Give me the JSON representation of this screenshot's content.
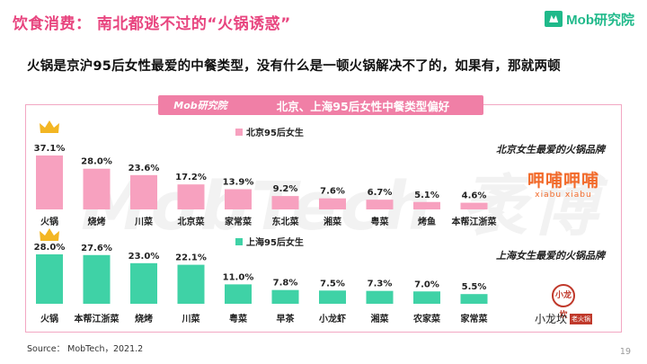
{
  "header": {
    "title": "饮食消费： 南北都逃不过的“火锅诱惑”",
    "logo_text": "Mob研究院",
    "subtitle": "火锅是京沪95后女性最爱的中餐类型，没有什么是一顿火锅解决不了的，如果有，那就两顿"
  },
  "banner": {
    "brand": "Mob研究院",
    "title": "北京、上海95后女性中餐类型偏好"
  },
  "watermark": "MobTech 袤博",
  "brands": {
    "beijing_label": "北京女生最爱的火锅品牌",
    "beijing_brand_main": "呷哺呷哺",
    "beijing_brand_sub": "xiabu xiabu",
    "shanghai_label": "上海女生最爱的火锅品牌",
    "shanghai_brand_seal": "小龙坎",
    "shanghai_brand_name": "小龙坎",
    "shanghai_brand_tag": "老火锅"
  },
  "colors": {
    "beijing": "#f7a1bf",
    "shanghai": "#3fd2a6",
    "crown": "#f3b623"
  },
  "footer": {
    "source": "Source： MobTech，2021.2",
    "page": "19"
  },
  "chart_data": [
    {
      "type": "bar",
      "legend": "北京95后女生",
      "categories": [
        "火锅",
        "烧烤",
        "川菜",
        "北京菜",
        "家常菜",
        "东北菜",
        "湘菜",
        "粤菜",
        "烤鱼",
        "本帮江浙菜"
      ],
      "values": [
        37.1,
        28.0,
        23.6,
        17.2,
        13.9,
        9.2,
        7.6,
        6.7,
        5.1,
        4.6
      ],
      "labels": [
        "37.1%",
        "28.0%",
        "23.6%",
        "17.2%",
        "13.9%",
        "9.2%",
        "7.6%",
        "6.7%",
        "5.1%",
        "4.6%"
      ],
      "ylim": [
        0,
        37.1
      ]
    },
    {
      "type": "bar",
      "legend": "上海95后女生",
      "categories": [
        "火锅",
        "本帮江浙菜",
        "烧烤",
        "川菜",
        "粤菜",
        "早茶",
        "小龙虾",
        "湘菜",
        "农家菜",
        "家常菜"
      ],
      "values": [
        28.0,
        27.6,
        23.0,
        22.1,
        11.0,
        7.8,
        7.5,
        7.3,
        7.0,
        5.5
      ],
      "labels": [
        "28.0%",
        "27.6%",
        "23.0%",
        "22.1%",
        "11.0%",
        "7.8%",
        "7.5%",
        "7.3%",
        "7.0%",
        "5.5%"
      ],
      "ylim": [
        0,
        28.0
      ]
    }
  ]
}
